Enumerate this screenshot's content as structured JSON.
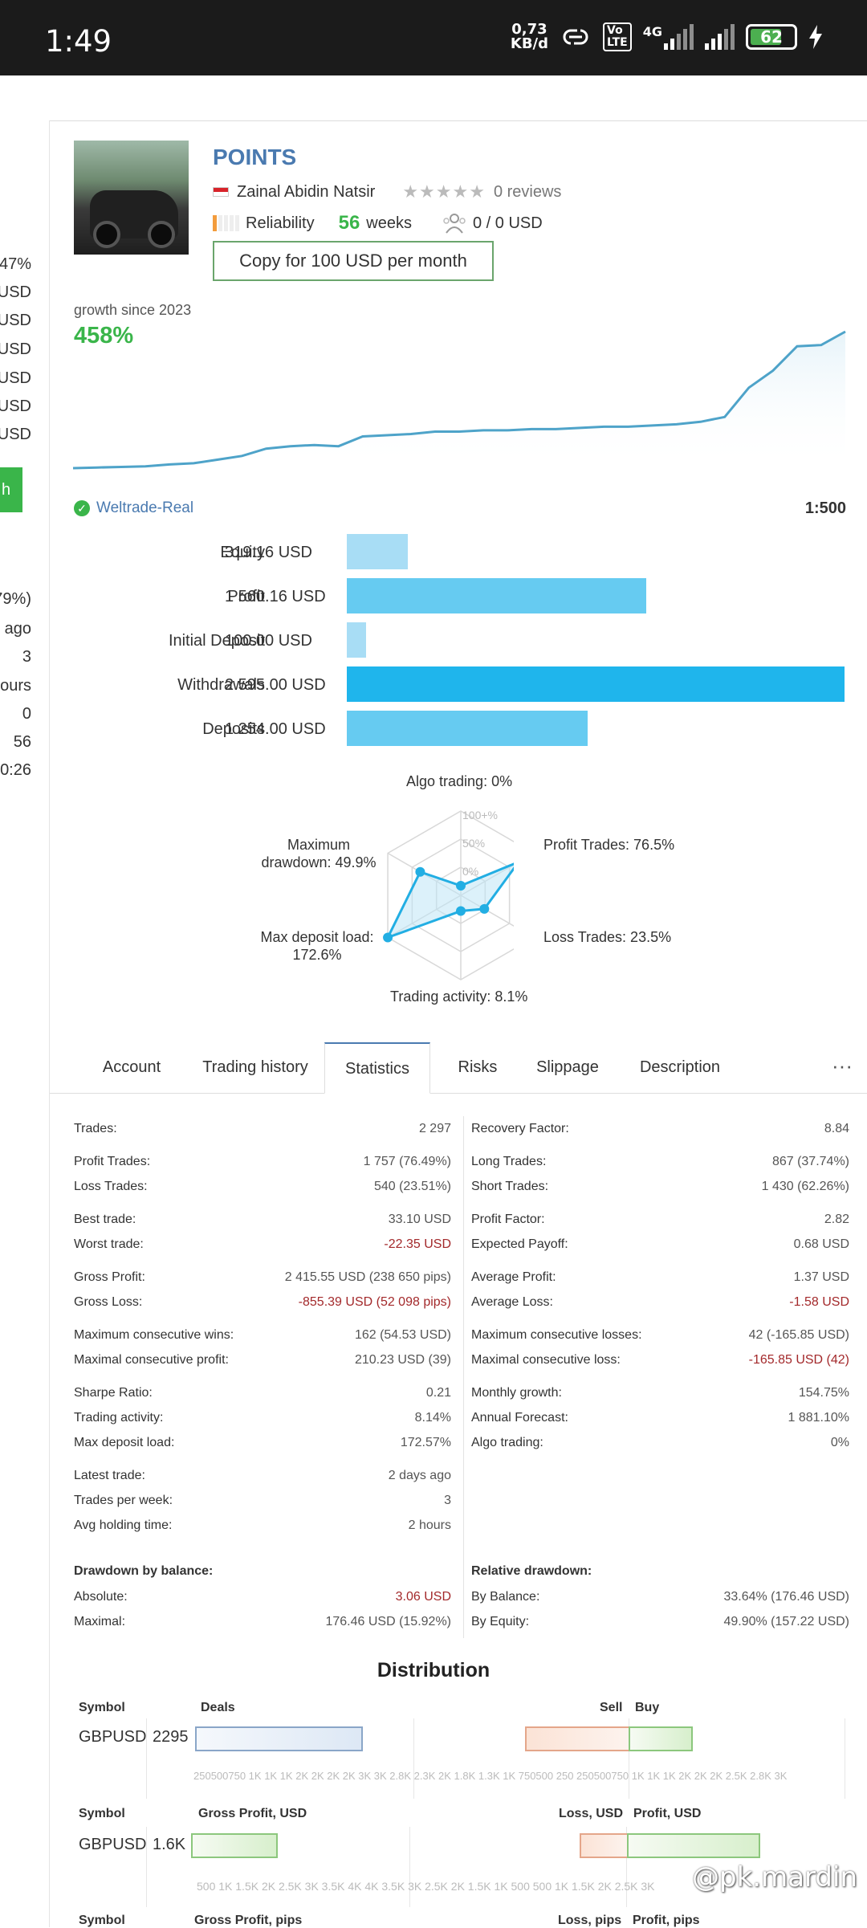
{
  "status_bar": {
    "time": "1:49",
    "speed_value": "0,73",
    "speed_unit": "KB/d",
    "volte_top": "Vo",
    "volte_bottom": "LTE",
    "network": "4G",
    "battery": "62"
  },
  "left_edge": [
    "47%",
    "USD",
    "USD",
    "USD",
    "USD",
    "USD",
    "USD",
    "h",
    "79%)",
    "ago",
    "3",
    "ours",
    "0",
    "56",
    "0:26"
  ],
  "signal": {
    "title": "POINTS",
    "author": "Zainal Abidin Natsir",
    "stars": "★★★★★",
    "reviews": "0 reviews",
    "reliability_label": "Reliability",
    "weeks_value": "56",
    "weeks_label": "weeks",
    "subscribers": "0 / 0 USD",
    "copy_button": "Copy for 100 USD per month",
    "growth_label": "growth since 2023",
    "growth_value": "458%",
    "broker": "Weltrade-Real",
    "leverage": "1:500"
  },
  "growth_chart": {
    "color": "#4ea3c9",
    "points": [
      0,
      0.5,
      1,
      1.5,
      3,
      4,
      7,
      10,
      16,
      18,
      19,
      18,
      26,
      27,
      28,
      30,
      30,
      31,
      31,
      32,
      32,
      33,
      34,
      34,
      35,
      36,
      38,
      42,
      66,
      80,
      100,
      101,
      112
    ]
  },
  "account_bars": [
    {
      "label": "Equity",
      "value": "319.16 USD",
      "amount": 319.16,
      "color": "#a8ddf5"
    },
    {
      "label": "Profit",
      "value": "1 560.16 USD",
      "amount": 1560.16,
      "color": "#66cbf1"
    },
    {
      "label": "Initial Deposit",
      "value": "100.00 USD",
      "amount": 100.0,
      "color": "#a8ddf5"
    },
    {
      "label": "Withdrawals",
      "value": "2 595.00 USD",
      "amount": 2595.0,
      "color": "#1fb5ec"
    },
    {
      "label": "Deposits",
      "value": "1 254.00 USD",
      "amount": 1254.0,
      "color": "#66cbf1"
    }
  ],
  "radar": {
    "ring_labels": [
      "100+%",
      "50%",
      "0%"
    ],
    "axes": [
      {
        "label": "Algo trading: 0%",
        "value": 0
      },
      {
        "label": "Profit Trades: 76.5%",
        "value": 76.5
      },
      {
        "label": "Loss Trades: 23.5%",
        "value": 23.5
      },
      {
        "label": "Trading activity: 8.1%",
        "value": 8.1
      },
      {
        "label": "Max deposit load: 172.6%",
        "value": 100
      },
      {
        "label": "Maximum drawdown: 49.9%",
        "value": 49.9
      }
    ],
    "label_lines": {
      "top": "Algo trading: 0%",
      "right_upper": "Profit Trades: 76.5%",
      "right_lower": "Loss Trades: 23.5%",
      "bottom": "Trading activity: 8.1%",
      "left_lower_1": "Max deposit load:",
      "left_lower_2": "172.6%",
      "left_upper_1": "Maximum",
      "left_upper_2": "drawdown: 49.9%"
    }
  },
  "tabs": [
    "Account",
    "Trading history",
    "Statistics",
    "Risks",
    "Slippage",
    "Description"
  ],
  "more": "···",
  "stats_left": [
    [
      {
        "k": "Trades:",
        "v": "2 297"
      }
    ],
    [
      {
        "k": "Profit Trades:",
        "v": "1 757 (76.49%)"
      },
      {
        "k": "Loss Trades:",
        "v": "540 (23.51%)"
      }
    ],
    [
      {
        "k": "Best trade:",
        "v": "33.10 USD"
      },
      {
        "k": "Worst trade:",
        "v": "-22.35 USD",
        "neg": true
      }
    ],
    [
      {
        "k": "Gross Profit:",
        "v": "2 415.55 USD (238 650 pips)"
      },
      {
        "k": "Gross Loss:",
        "v": "-855.39 USD (52 098 pips)",
        "neg": true
      }
    ],
    [
      {
        "k": "Maximum consecutive wins:",
        "v": "162 (54.53 USD)"
      },
      {
        "k": "Maximal consecutive profit:",
        "v": "210.23 USD (39)"
      }
    ],
    [
      {
        "k": "Sharpe Ratio:",
        "v": "0.21"
      },
      {
        "k": "Trading activity:",
        "v": "8.14%"
      },
      {
        "k": "Max deposit load:",
        "v": "172.57%"
      }
    ],
    [
      {
        "k": "Latest trade:",
        "v": "2 days ago"
      },
      {
        "k": "Trades per week:",
        "v": "3"
      },
      {
        "k": "Avg holding time:",
        "v": "2 hours"
      }
    ]
  ],
  "stats_right": [
    [
      {
        "k": "Recovery Factor:",
        "v": "8.84"
      }
    ],
    [
      {
        "k": "Long Trades:",
        "v": "867 (37.74%)"
      },
      {
        "k": "Short Trades:",
        "v": "1 430 (62.26%)"
      }
    ],
    [
      {
        "k": "Profit Factor:",
        "v": "2.82"
      },
      {
        "k": "Expected Payoff:",
        "v": "0.68 USD"
      }
    ],
    [
      {
        "k": "Average Profit:",
        "v": "1.37 USD"
      },
      {
        "k": "Average Loss:",
        "v": "-1.58 USD",
        "neg": true
      }
    ],
    [
      {
        "k": "Maximum consecutive losses:",
        "v": "42 (-165.85 USD)"
      },
      {
        "k": "Maximal consecutive loss:",
        "v": "-165.85 USD (42)",
        "neg": true
      }
    ],
    [
      {
        "k": "Monthly growth:",
        "v": "154.75%"
      },
      {
        "k": "Annual Forecast:",
        "v": "1 881.10%"
      },
      {
        "k": "Algo trading:",
        "v": "0%"
      }
    ]
  ],
  "drawdown_balance": {
    "title": "Drawdown by balance:",
    "rows": [
      {
        "k": "Absolute:",
        "v": "3.06 USD",
        "neg": true
      },
      {
        "k": "Maximal:",
        "v": "176.46 USD (15.92%)"
      }
    ]
  },
  "relative_drawdown": {
    "title": "Relative drawdown:",
    "rows": [
      {
        "k": "By Balance:",
        "v": "33.64% (176.46 USD)"
      },
      {
        "k": "By Equity:",
        "v": "49.90% (157.22 USD)"
      }
    ]
  },
  "distribution": {
    "title": "Distribution",
    "deals": {
      "symbol_header": "Symbol",
      "deals_header": "Deals",
      "sell_header": "Sell",
      "buy_header": "Buy",
      "symbol": "GBPUSD",
      "count": "2295",
      "ticks": "250500750 1K 1K 1K 2K 2K 2K 2K 3K 3K 2.8K 2.3K 2K 1.8K 1.3K 1K 750500 250 250500750 1K 1K 1K 2K 2K 2K 2.5K 2.8K 3K"
    },
    "gross_profit": {
      "symbol_header": "Symbol",
      "profit_header": "Gross Profit, USD",
      "loss_header": "Loss, USD",
      "profit2_header": "Profit, USD",
      "symbol": "GBPUSD",
      "amount": "1.6K",
      "ticks": "500 1K 1.5K 2K 2.5K 3K 3.5K 4K 4K 3.5K 3K 2.5K 2K 1.5K 1K 500 500 1K 1.5K 2K 2.5K 3K"
    },
    "gross_pips": {
      "symbol_header": "Symbol",
      "profit_header": "Gross Profit, pips",
      "loss_header": "Loss, pips",
      "profit2_header": "Profit, pips"
    }
  },
  "watermark": "@pk.mardin"
}
